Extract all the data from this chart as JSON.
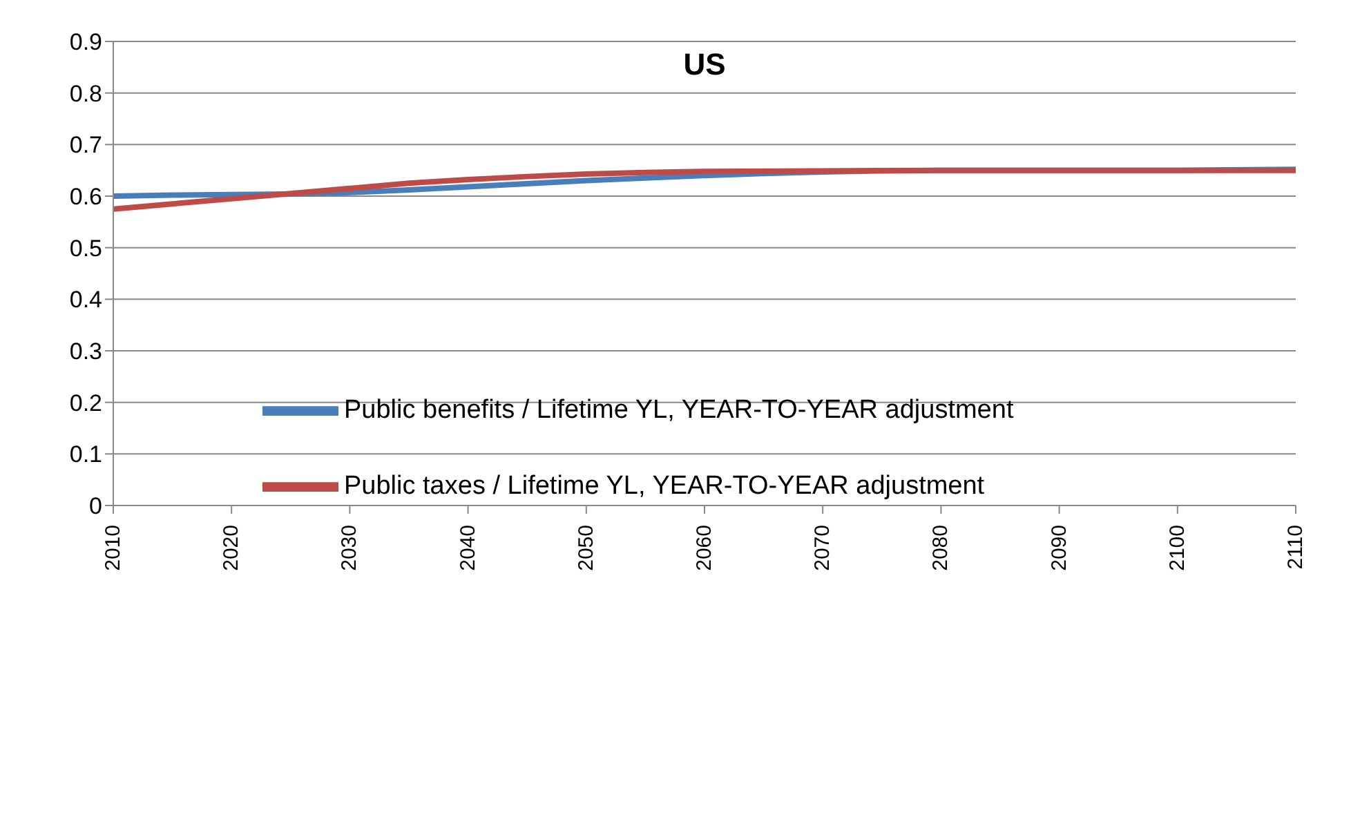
{
  "chart_data": {
    "type": "line",
    "title": "US",
    "xlim": [
      2010,
      2110
    ],
    "xticks": [
      2010,
      2020,
      2030,
      2040,
      2050,
      2060,
      2070,
      2080,
      2090,
      2100,
      2110
    ],
    "ylim": [
      0,
      0.9
    ],
    "yticks": [
      0,
      0.1,
      0.2,
      0.3,
      0.4,
      0.5,
      0.6,
      0.7,
      0.8,
      0.9
    ],
    "grid": "y",
    "legend": "left",
    "marker": "none",
    "line_style": "solid",
    "series": [
      {
        "name": "Public benefits / Lifetime YL, YEAR-TO-YEAR adjustment",
        "color": "#4a7ebb",
        "x": [
          2010,
          2015,
          2020,
          2025,
          2030,
          2035,
          2040,
          2045,
          2050,
          2055,
          2060,
          2065,
          2070,
          2075,
          2080,
          2090,
          2100,
          2110
        ],
        "values": [
          0.6,
          0.602,
          0.603,
          0.604,
          0.607,
          0.612,
          0.618,
          0.624,
          0.63,
          0.635,
          0.64,
          0.644,
          0.647,
          0.649,
          0.65,
          0.65,
          0.65,
          0.652
        ]
      },
      {
        "name": "Public taxes / Lifetime YL, YEAR-TO-YEAR adjustment",
        "color": "#be4b48",
        "x": [
          2010,
          2015,
          2020,
          2025,
          2030,
          2035,
          2040,
          2045,
          2050,
          2055,
          2060,
          2070,
          2080,
          2090,
          2100,
          2110
        ],
        "values": [
          0.575,
          0.585,
          0.595,
          0.605,
          0.615,
          0.625,
          0.632,
          0.638,
          0.643,
          0.646,
          0.648,
          0.649,
          0.65,
          0.65,
          0.65,
          0.65
        ]
      }
    ]
  }
}
